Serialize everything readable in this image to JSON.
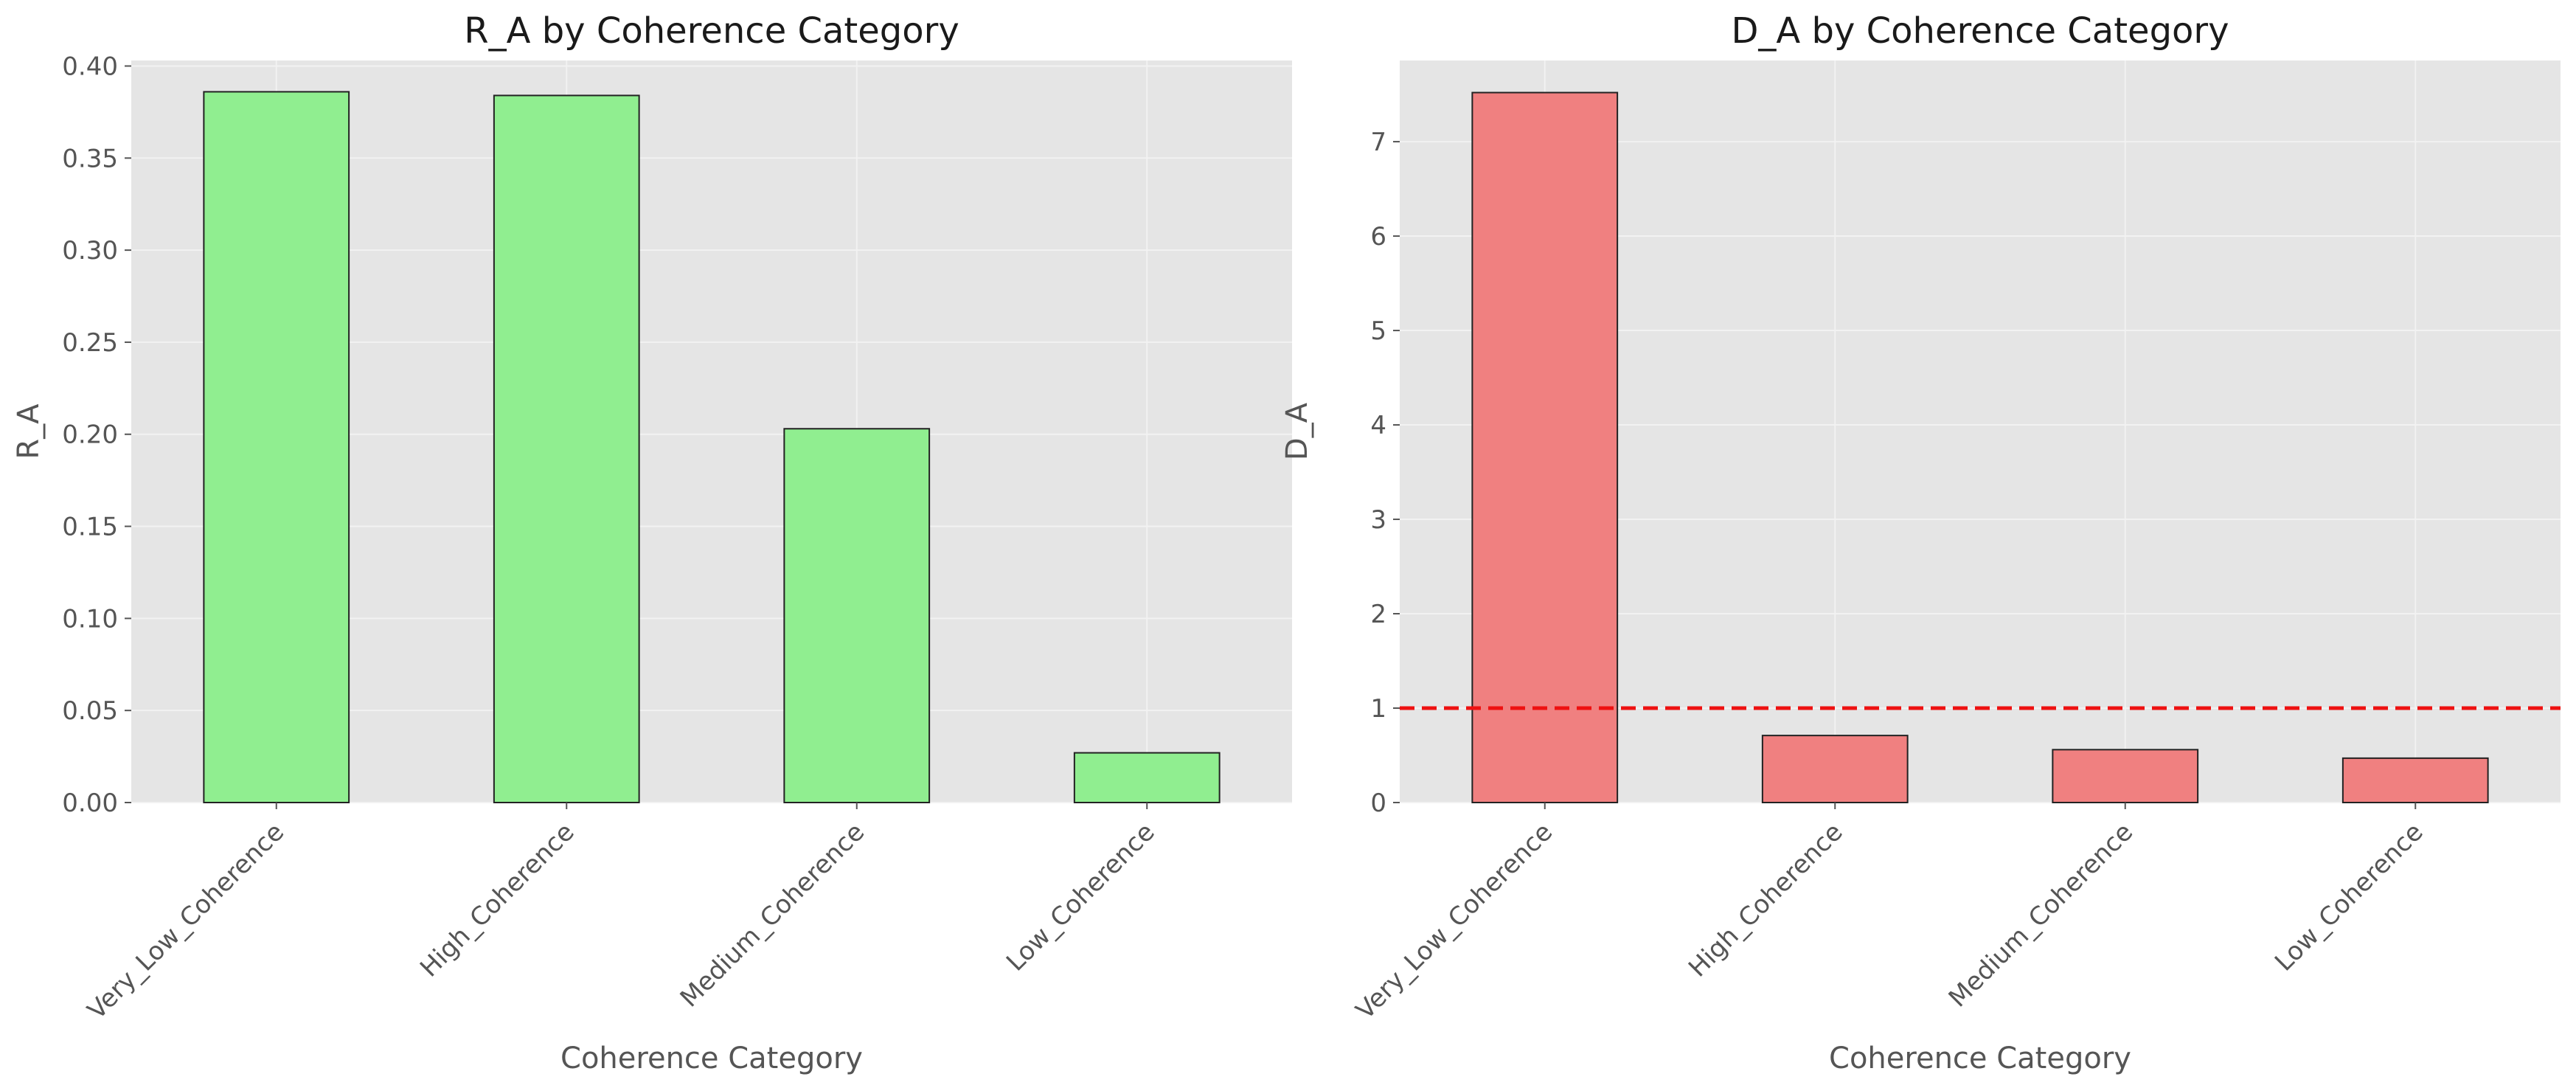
{
  "chart_data": [
    {
      "type": "bar",
      "title": "R_A by Coherence Category",
      "xlabel": "Coherence Category",
      "ylabel": "R_A",
      "categories": [
        "Very_Low_Coherence",
        "High_Coherence",
        "Medium_Coherence",
        "Low_Coherence"
      ],
      "values": [
        0.386,
        0.384,
        0.203,
        0.027
      ],
      "ylim": [
        0,
        0.403
      ],
      "yticks": [
        "0.00",
        "0.05",
        "0.10",
        "0.15",
        "0.20",
        "0.25",
        "0.30",
        "0.35",
        "0.40"
      ],
      "ytick_values": [
        0,
        0.05,
        0.1,
        0.15,
        0.2,
        0.25,
        0.3,
        0.35,
        0.4
      ],
      "bar_color": "#90ee90",
      "grid": true
    },
    {
      "type": "bar",
      "title": "D_A by Coherence Category",
      "xlabel": "Coherence Category",
      "ylabel": "D_A",
      "categories": [
        "Very_Low_Coherence",
        "High_Coherence",
        "Medium_Coherence",
        "Low_Coherence"
      ],
      "values": [
        7.52,
        0.71,
        0.56,
        0.47
      ],
      "ylim": [
        0,
        7.86
      ],
      "yticks": [
        "0",
        "1",
        "2",
        "3",
        "4",
        "5",
        "6",
        "7"
      ],
      "ytick_values": [
        0,
        1,
        2,
        3,
        4,
        5,
        6,
        7
      ],
      "bar_color": "#f08080",
      "reference_line": {
        "y": 1,
        "color": "#ee1111",
        "style": "dashed"
      },
      "grid": true
    }
  ]
}
